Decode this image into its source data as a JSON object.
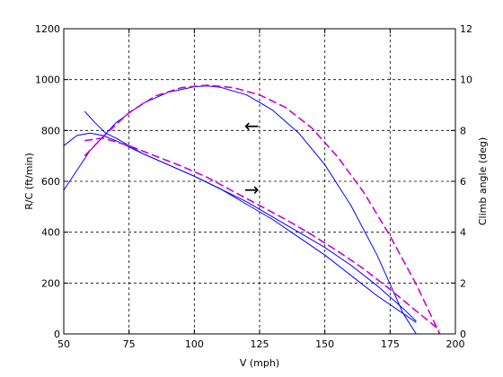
{
  "chart_data": {
    "type": "line",
    "xlabel": "V (mph)",
    "ylabel_left": "R/C (ft/min)",
    "ylabel_right": "Climb angle (deg)",
    "xlim": [
      50,
      200
    ],
    "ylim_left": [
      0,
      1200
    ],
    "ylim_right": [
      0,
      12
    ],
    "x_ticks": [
      50,
      75,
      100,
      125,
      150,
      175,
      200
    ],
    "y_ticks_left": [
      0,
      200,
      400,
      600,
      800,
      1000,
      1200
    ],
    "y_ticks_right": [
      0,
      2,
      4,
      6,
      8,
      10,
      12
    ],
    "grid": true,
    "annotations": [
      {
        "text": "←",
        "x": 122,
        "y": 815,
        "meaning": "R/C curves read on left axis"
      },
      {
        "text": "→",
        "x": 122,
        "y": 565,
        "meaning": "climb angle curves read on right axis"
      }
    ],
    "series": [
      {
        "axis": "left",
        "color": "#0000ff",
        "dash": "solid",
        "x": [
          50,
          60,
          70,
          80,
          90,
          100,
          105,
          110,
          120,
          130,
          140,
          150,
          160,
          170,
          180,
          185
        ],
        "y": [
          565,
          720,
          830,
          905,
          950,
          972,
          975,
          970,
          940,
          880,
          790,
          665,
          505,
          310,
          80,
          0
        ]
      },
      {
        "axis": "left",
        "color": "#cc00cc",
        "dash": "dashed",
        "x": [
          58,
          65,
          75,
          85,
          95,
          105,
          115,
          125,
          135,
          145,
          155,
          165,
          175,
          185,
          194
        ],
        "y": [
          700,
          775,
          870,
          935,
          968,
          978,
          968,
          940,
          890,
          810,
          695,
          555,
          385,
          195,
          0
        ]
      },
      {
        "axis": "right",
        "color": "#0000ff",
        "dash": "solid",
        "x": [
          50,
          55,
          60,
          65,
          70,
          80,
          90,
          100,
          110,
          120,
          130,
          140,
          150,
          160,
          170,
          180,
          185
        ],
        "y": [
          7.4,
          7.8,
          7.9,
          7.8,
          7.6,
          7.1,
          6.65,
          6.2,
          5.7,
          5.2,
          4.6,
          4.0,
          3.4,
          2.7,
          1.9,
          1.0,
          0.5
        ]
      },
      {
        "axis": "right",
        "color": "#0000ff",
        "dash": "solid",
        "x": [
          58,
          62,
          66,
          70,
          80,
          90,
          100,
          110,
          120,
          130,
          140,
          150,
          160,
          170,
          180,
          185
        ],
        "y": [
          8.75,
          8.3,
          7.9,
          7.7,
          7.1,
          6.65,
          6.2,
          5.7,
          5.1,
          4.5,
          3.8,
          3.1,
          2.3,
          1.5,
          0.8,
          0.45
        ]
      },
      {
        "axis": "right",
        "color": "#cc00cc",
        "dash": "dashed",
        "x": [
          58,
          65,
          75,
          85,
          95,
          105,
          115,
          125,
          135,
          145,
          155,
          165,
          175,
          185,
          194
        ],
        "y": [
          7.6,
          7.7,
          7.4,
          7.0,
          6.6,
          6.15,
          5.6,
          5.05,
          4.5,
          3.9,
          3.25,
          2.55,
          1.75,
          0.9,
          0.15
        ]
      }
    ]
  }
}
